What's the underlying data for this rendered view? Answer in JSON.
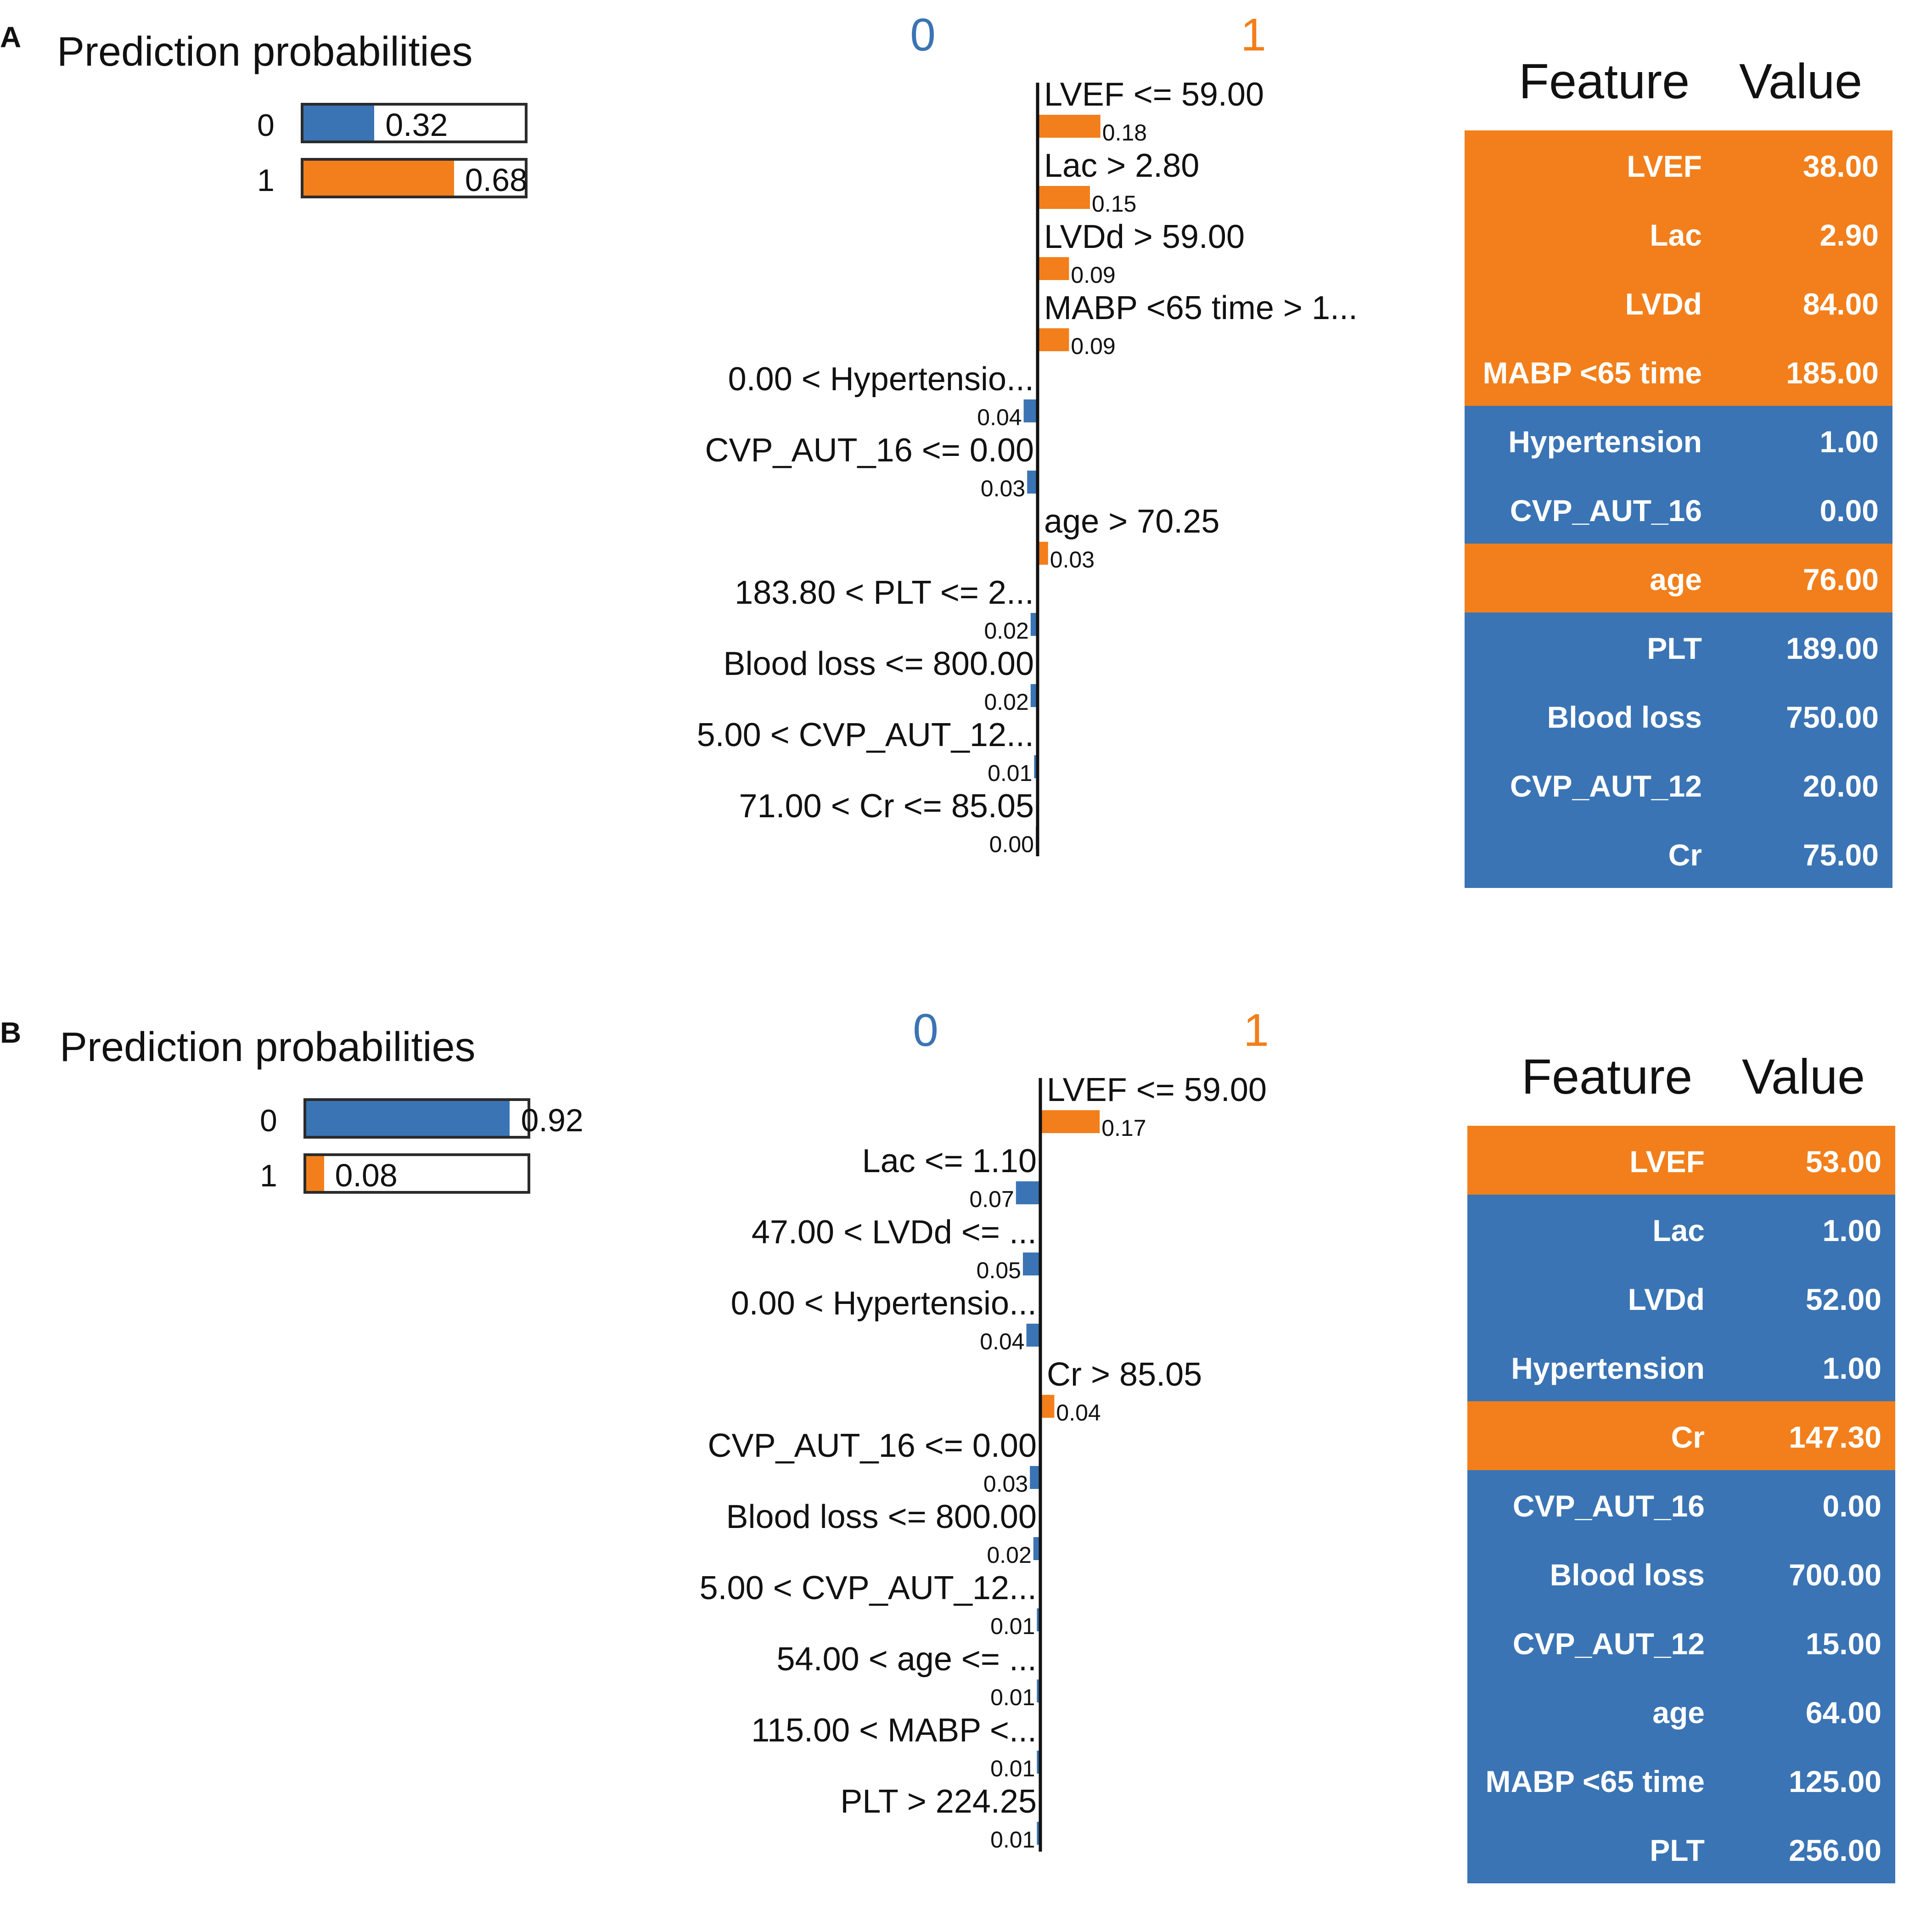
{
  "colors": {
    "class0": "#3a74b4",
    "class1": "#f27f1b"
  },
  "chart_data": [
    {
      "panel": "A",
      "type": "bar",
      "prediction_probabilities": {
        "title": "Prediction probabilities",
        "classes": [
          "0",
          "1"
        ],
        "values": [
          0.32,
          0.68
        ],
        "value_labels": [
          "0.32",
          "0.68"
        ]
      },
      "contributions_header": {
        "left": "0",
        "right": "1"
      },
      "contributions": [
        {
          "label": "LVEF <= 59.00",
          "weight": 0.18,
          "weight_label": "0.18",
          "class": "1"
        },
        {
          "label": "Lac > 2.80",
          "weight": 0.15,
          "weight_label": "0.15",
          "class": "1"
        },
        {
          "label": "LVDd > 59.00",
          "weight": 0.09,
          "weight_label": "0.09",
          "class": "1"
        },
        {
          "label": "MABP <65 time > 1...",
          "weight": 0.09,
          "weight_label": "0.09",
          "class": "1"
        },
        {
          "label": "0.00 < Hypertensio...",
          "weight": 0.04,
          "weight_label": "0.04",
          "class": "0"
        },
        {
          "label": "CVP_AUT_16 <= 0.00",
          "weight": 0.03,
          "weight_label": "0.03",
          "class": "0"
        },
        {
          "label": "age > 70.25",
          "weight": 0.03,
          "weight_label": "0.03",
          "class": "1"
        },
        {
          "label": "183.80 < PLT <= 2...",
          "weight": 0.02,
          "weight_label": "0.02",
          "class": "0"
        },
        {
          "label": "Blood loss <= 800.00",
          "weight": 0.02,
          "weight_label": "0.02",
          "class": "0"
        },
        {
          "label": "5.00 < CVP_AUT_12...",
          "weight": 0.01,
          "weight_label": "0.01",
          "class": "0"
        },
        {
          "label": "71.00 < Cr <= 85.05",
          "weight": 0.0,
          "weight_label": "0.00",
          "class": "0"
        }
      ],
      "table": {
        "headers": [
          "Feature",
          "Value"
        ],
        "rows": [
          {
            "feature": "LVEF",
            "value": "38.00",
            "class": "1"
          },
          {
            "feature": "Lac",
            "value": "2.90",
            "class": "1"
          },
          {
            "feature": "LVDd",
            "value": "84.00",
            "class": "1"
          },
          {
            "feature": "MABP <65 time",
            "value": "185.00",
            "class": "1"
          },
          {
            "feature": "Hypertension",
            "value": "1.00",
            "class": "0"
          },
          {
            "feature": "CVP_AUT_16",
            "value": "0.00",
            "class": "0"
          },
          {
            "feature": "age",
            "value": "76.00",
            "class": "1"
          },
          {
            "feature": "PLT",
            "value": "189.00",
            "class": "0"
          },
          {
            "feature": "Blood loss",
            "value": "750.00",
            "class": "0"
          },
          {
            "feature": "CVP_AUT_12",
            "value": "20.00",
            "class": "0"
          },
          {
            "feature": "Cr",
            "value": "75.00",
            "class": "0"
          }
        ]
      }
    },
    {
      "panel": "B",
      "type": "bar",
      "prediction_probabilities": {
        "title": "Prediction probabilities",
        "classes": [
          "0",
          "1"
        ],
        "values": [
          0.92,
          0.08
        ],
        "value_labels": [
          "0.92",
          "0.08"
        ]
      },
      "contributions_header": {
        "left": "0",
        "right": "1"
      },
      "contributions": [
        {
          "label": "LVEF <= 59.00",
          "weight": 0.17,
          "weight_label": "0.17",
          "class": "1"
        },
        {
          "label": "Lac <= 1.10",
          "weight": 0.07,
          "weight_label": "0.07",
          "class": "0"
        },
        {
          "label": "47.00 < LVDd <= ...",
          "weight": 0.05,
          "weight_label": "0.05",
          "class": "0"
        },
        {
          "label": "0.00 < Hypertensio...",
          "weight": 0.04,
          "weight_label": "0.04",
          "class": "0"
        },
        {
          "label": "Cr > 85.05",
          "weight": 0.04,
          "weight_label": "0.04",
          "class": "1"
        },
        {
          "label": "CVP_AUT_16 <= 0.00",
          "weight": 0.03,
          "weight_label": "0.03",
          "class": "0"
        },
        {
          "label": "Blood loss <= 800.00",
          "weight": 0.02,
          "weight_label": "0.02",
          "class": "0"
        },
        {
          "label": "5.00 < CVP_AUT_12...",
          "weight": 0.01,
          "weight_label": "0.01",
          "class": "0"
        },
        {
          "label": "54.00 < age <= ...",
          "weight": 0.01,
          "weight_label": "0.01",
          "class": "0"
        },
        {
          "label": "115.00 < MABP <...",
          "weight": 0.01,
          "weight_label": "0.01",
          "class": "0"
        },
        {
          "label": "PLT > 224.25",
          "weight": 0.01,
          "weight_label": "0.01",
          "class": "0"
        }
      ],
      "table": {
        "headers": [
          "Feature",
          "Value"
        ],
        "rows": [
          {
            "feature": "LVEF",
            "value": "53.00",
            "class": "1"
          },
          {
            "feature": "Lac",
            "value": "1.00",
            "class": "0"
          },
          {
            "feature": "LVDd",
            "value": "52.00",
            "class": "0"
          },
          {
            "feature": "Hypertension",
            "value": "1.00",
            "class": "0"
          },
          {
            "feature": "Cr",
            "value": "147.30",
            "class": "1"
          },
          {
            "feature": "CVP_AUT_16",
            "value": "0.00",
            "class": "0"
          },
          {
            "feature": "Blood loss",
            "value": "700.00",
            "class": "0"
          },
          {
            "feature": "CVP_AUT_12",
            "value": "15.00",
            "class": "0"
          },
          {
            "feature": "age",
            "value": "64.00",
            "class": "0"
          },
          {
            "feature": "MABP <65 time",
            "value": "125.00",
            "class": "0"
          },
          {
            "feature": "PLT",
            "value": "256.00",
            "class": "0"
          }
        ]
      }
    }
  ],
  "panel_letters": [
    "A",
    "B"
  ]
}
